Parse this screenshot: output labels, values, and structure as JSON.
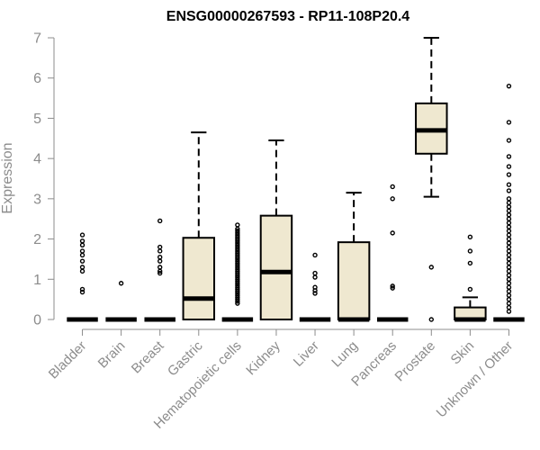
{
  "chart_data": {
    "type": "boxplot",
    "title": "ENSG00000267593 - RP11-108P20.4",
    "xlabel": "",
    "ylabel": "Expression",
    "ylim": [
      0,
      7
    ],
    "yticks": [
      0,
      1,
      2,
      3,
      4,
      5,
      6,
      7
    ],
    "categories": [
      "Bladder",
      "Brain",
      "Breast",
      "Gastric",
      "Hematopoietic cells",
      "Kidney",
      "Liver",
      "Lung",
      "Pancreas",
      "Prostate",
      "Skin",
      "Unknown / Other"
    ],
    "box_color": "#efe8d0",
    "boxes": [
      {
        "category": "Bladder",
        "q1": 0,
        "median": 0,
        "q3": 0,
        "whisker_low": 0,
        "whisker_high": 0,
        "outliers": [
          0.68,
          0.75,
          1.2,
          1.3,
          1.45,
          1.6,
          1.7,
          1.85,
          1.95,
          2.1
        ]
      },
      {
        "category": "Brain",
        "q1": 0,
        "median": 0,
        "q3": 0,
        "whisker_low": 0,
        "whisker_high": 0,
        "outliers": [
          0.9
        ]
      },
      {
        "category": "Breast",
        "q1": 0,
        "median": 0,
        "q3": 0,
        "whisker_low": 0,
        "whisker_high": 0,
        "outliers": [
          1.15,
          1.2,
          1.3,
          1.45,
          1.55,
          1.7,
          1.8,
          2.45
        ]
      },
      {
        "category": "Gastric",
        "q1": 0,
        "median": 0.52,
        "q3": 2.03,
        "whisker_low": 0,
        "whisker_high": 4.65,
        "outliers": []
      },
      {
        "category": "Hematopoietic cells",
        "q1": 0,
        "median": 0,
        "q3": 0,
        "whisker_low": 0,
        "whisker_high": 0,
        "outliers": [
          0.4,
          0.45,
          0.5,
          0.55,
          0.6,
          0.65,
          0.7,
          0.75,
          0.8,
          0.85,
          0.9,
          0.95,
          1.0,
          1.05,
          1.1,
          1.15,
          1.2,
          1.25,
          1.3,
          1.35,
          1.4,
          1.45,
          1.5,
          1.55,
          1.6,
          1.65,
          1.7,
          1.75,
          1.8,
          1.85,
          1.9,
          1.95,
          2.0,
          2.05,
          2.1,
          2.15,
          2.2,
          2.25,
          2.35
        ]
      },
      {
        "category": "Kidney",
        "q1": 0,
        "median": 1.18,
        "q3": 2.58,
        "whisker_low": 0,
        "whisker_high": 4.45,
        "outliers": []
      },
      {
        "category": "Liver",
        "q1": 0,
        "median": 0,
        "q3": 0,
        "whisker_low": 0,
        "whisker_high": 0,
        "outliers": [
          0.65,
          0.72,
          0.8,
          1.05,
          1.15,
          1.6
        ]
      },
      {
        "category": "Lung",
        "q1": 0,
        "median": 0,
        "q3": 1.92,
        "whisker_low": 0,
        "whisker_high": 3.15,
        "outliers": []
      },
      {
        "category": "Pancreas",
        "q1": 0,
        "median": 0,
        "q3": 0,
        "whisker_low": 0,
        "whisker_high": 0,
        "outliers": [
          0.78,
          0.83,
          2.15,
          3.0,
          3.3
        ]
      },
      {
        "category": "Prostate",
        "q1": 4.12,
        "median": 4.7,
        "q3": 5.37,
        "whisker_low": 3.05,
        "whisker_high": 7.0,
        "outliers": [
          1.3,
          0.0
        ]
      },
      {
        "category": "Skin",
        "q1": 0,
        "median": 0,
        "q3": 0.3,
        "whisker_low": 0,
        "whisker_high": 0.55,
        "outliers": [
          0.75,
          1.4,
          1.7,
          2.05
        ]
      },
      {
        "category": "Unknown / Other",
        "q1": 0,
        "median": 0,
        "q3": 0,
        "whisker_low": 0,
        "whisker_high": 0,
        "outliers": [
          0.2,
          0.3,
          0.4,
          0.5,
          0.6,
          0.7,
          0.8,
          0.9,
          1.0,
          1.1,
          1.2,
          1.3,
          1.4,
          1.5,
          1.6,
          1.7,
          1.8,
          1.9,
          2.0,
          2.1,
          2.2,
          2.3,
          2.4,
          2.5,
          2.6,
          2.7,
          2.8,
          2.9,
          3.0,
          3.2,
          3.35,
          3.6,
          3.8,
          4.05,
          4.45,
          4.9,
          5.8
        ]
      }
    ]
  }
}
